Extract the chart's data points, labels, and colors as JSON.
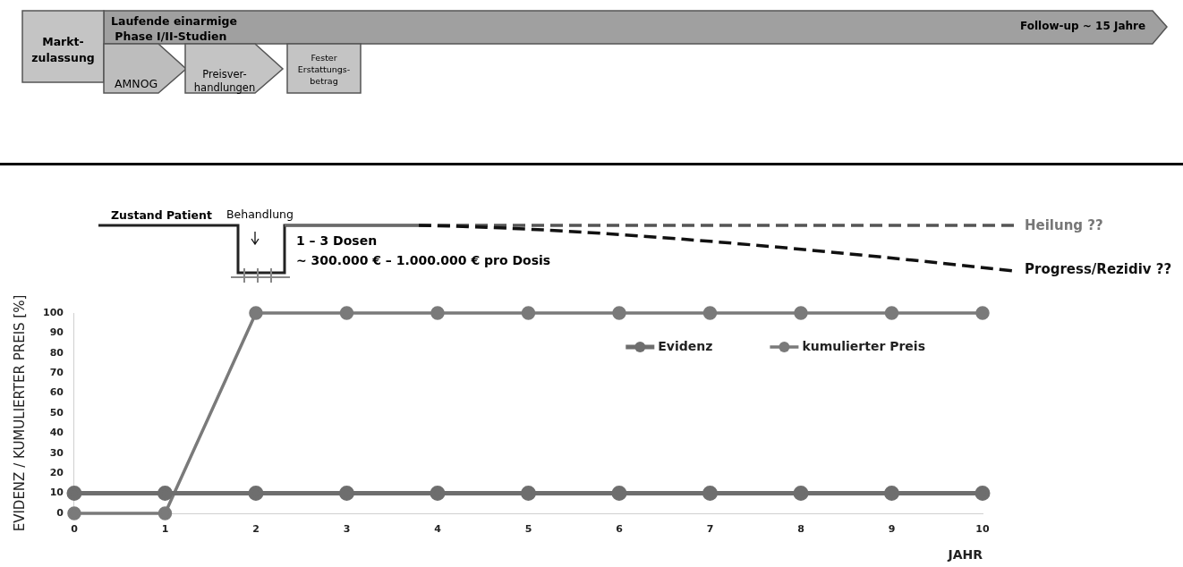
{
  "chart_data": {
    "type": "line",
    "xlabel": "JAHR",
    "ylabel": "EVIDENZ / KUMULIERTER PREIS [%]",
    "x": [
      0,
      1,
      2,
      3,
      4,
      5,
      6,
      7,
      8,
      9,
      10
    ],
    "series": [
      {
        "name": "Evidenz",
        "color": "#6e6e6e",
        "values": [
          10,
          10,
          10,
          10,
          10,
          10,
          10,
          10,
          10,
          10,
          10
        ]
      },
      {
        "name": "kumulierter Preis",
        "color": "#7a7a7a",
        "values": [
          0,
          0,
          100,
          100,
          100,
          100,
          100,
          100,
          100,
          100,
          100
        ]
      }
    ],
    "xlim": [
      0,
      10
    ],
    "xticks": [
      0,
      1,
      2,
      3,
      4,
      5,
      6,
      7,
      8,
      9,
      10
    ],
    "ylim": [
      0,
      100
    ],
    "yticks": [
      0,
      10,
      20,
      30,
      40,
      50,
      60,
      70,
      80,
      90,
      100
    ],
    "grid": false,
    "legend": "top right",
    "marker": "circle",
    "line_style": "solid",
    "annotations": [
      "Markt-\nzulassung",
      "Laufende einarmige\n Phase I/II-Studien",
      "Follow-up ~ 15 Jahre",
      "AMNOG",
      "Preisver-\nhandlungen",
      "Fester\nErstattungs-\nbetrag",
      "Zustand Patient",
      "Behandlung",
      "1 – 3 Dosen",
      "~ 300.000 € – 1.000.000 € pro Dosis",
      "Heilung ??",
      "Progress/Rezidiv ??"
    ]
  }
}
